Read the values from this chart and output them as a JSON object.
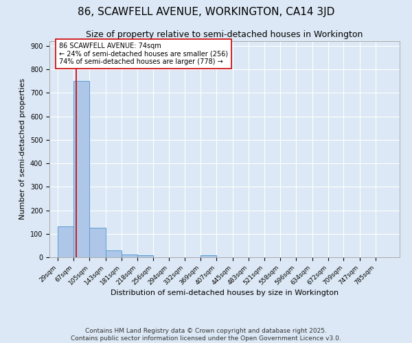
{
  "title": "86, SCAWFELL AVENUE, WORKINGTON, CA14 3JD",
  "subtitle": "Size of property relative to semi-detached houses in Workington",
  "xlabel": "Distribution of semi-detached houses by size in Workington",
  "ylabel": "Number of semi-detached properties",
  "bin_labels": [
    "29sqm",
    "67sqm",
    "105sqm",
    "143sqm",
    "181sqm",
    "218sqm",
    "256sqm",
    "294sqm",
    "332sqm",
    "369sqm",
    "407sqm",
    "445sqm",
    "483sqm",
    "521sqm",
    "558sqm",
    "596sqm",
    "634sqm",
    "672sqm",
    "709sqm",
    "747sqm",
    "785sqm"
  ],
  "bin_edges": [
    29,
    67,
    105,
    143,
    181,
    218,
    256,
    294,
    332,
    369,
    407,
    445,
    483,
    521,
    558,
    596,
    634,
    672,
    709,
    747,
    785
  ],
  "bar_heights": [
    130,
    750,
    125,
    28,
    11,
    8,
    0,
    0,
    0,
    8,
    0,
    0,
    0,
    0,
    0,
    0,
    0,
    0,
    0,
    0
  ],
  "bar_color": "#aec6e8",
  "bar_edge_color": "#5a9fd4",
  "property_value": 74,
  "property_line_color": "#cc0000",
  "annotation_text": "86 SCAWFELL AVENUE: 74sqm\n← 24% of semi-detached houses are smaller (256)\n74% of semi-detached houses are larger (778) →",
  "annotation_box_color": "#ffffff",
  "annotation_box_edge_color": "#cc0000",
  "footer_text": "Contains HM Land Registry data © Crown copyright and database right 2025.\nContains public sector information licensed under the Open Government Licence v3.0.",
  "ylim": [
    0,
    920
  ],
  "background_color": "#dce8f5",
  "axes_background_color": "#dce8f5",
  "grid_color": "#ffffff",
  "title_fontsize": 11,
  "subtitle_fontsize": 9,
  "footer_fontsize": 6.5,
  "tick_fontsize": 6.5,
  "axis_label_fontsize": 8
}
